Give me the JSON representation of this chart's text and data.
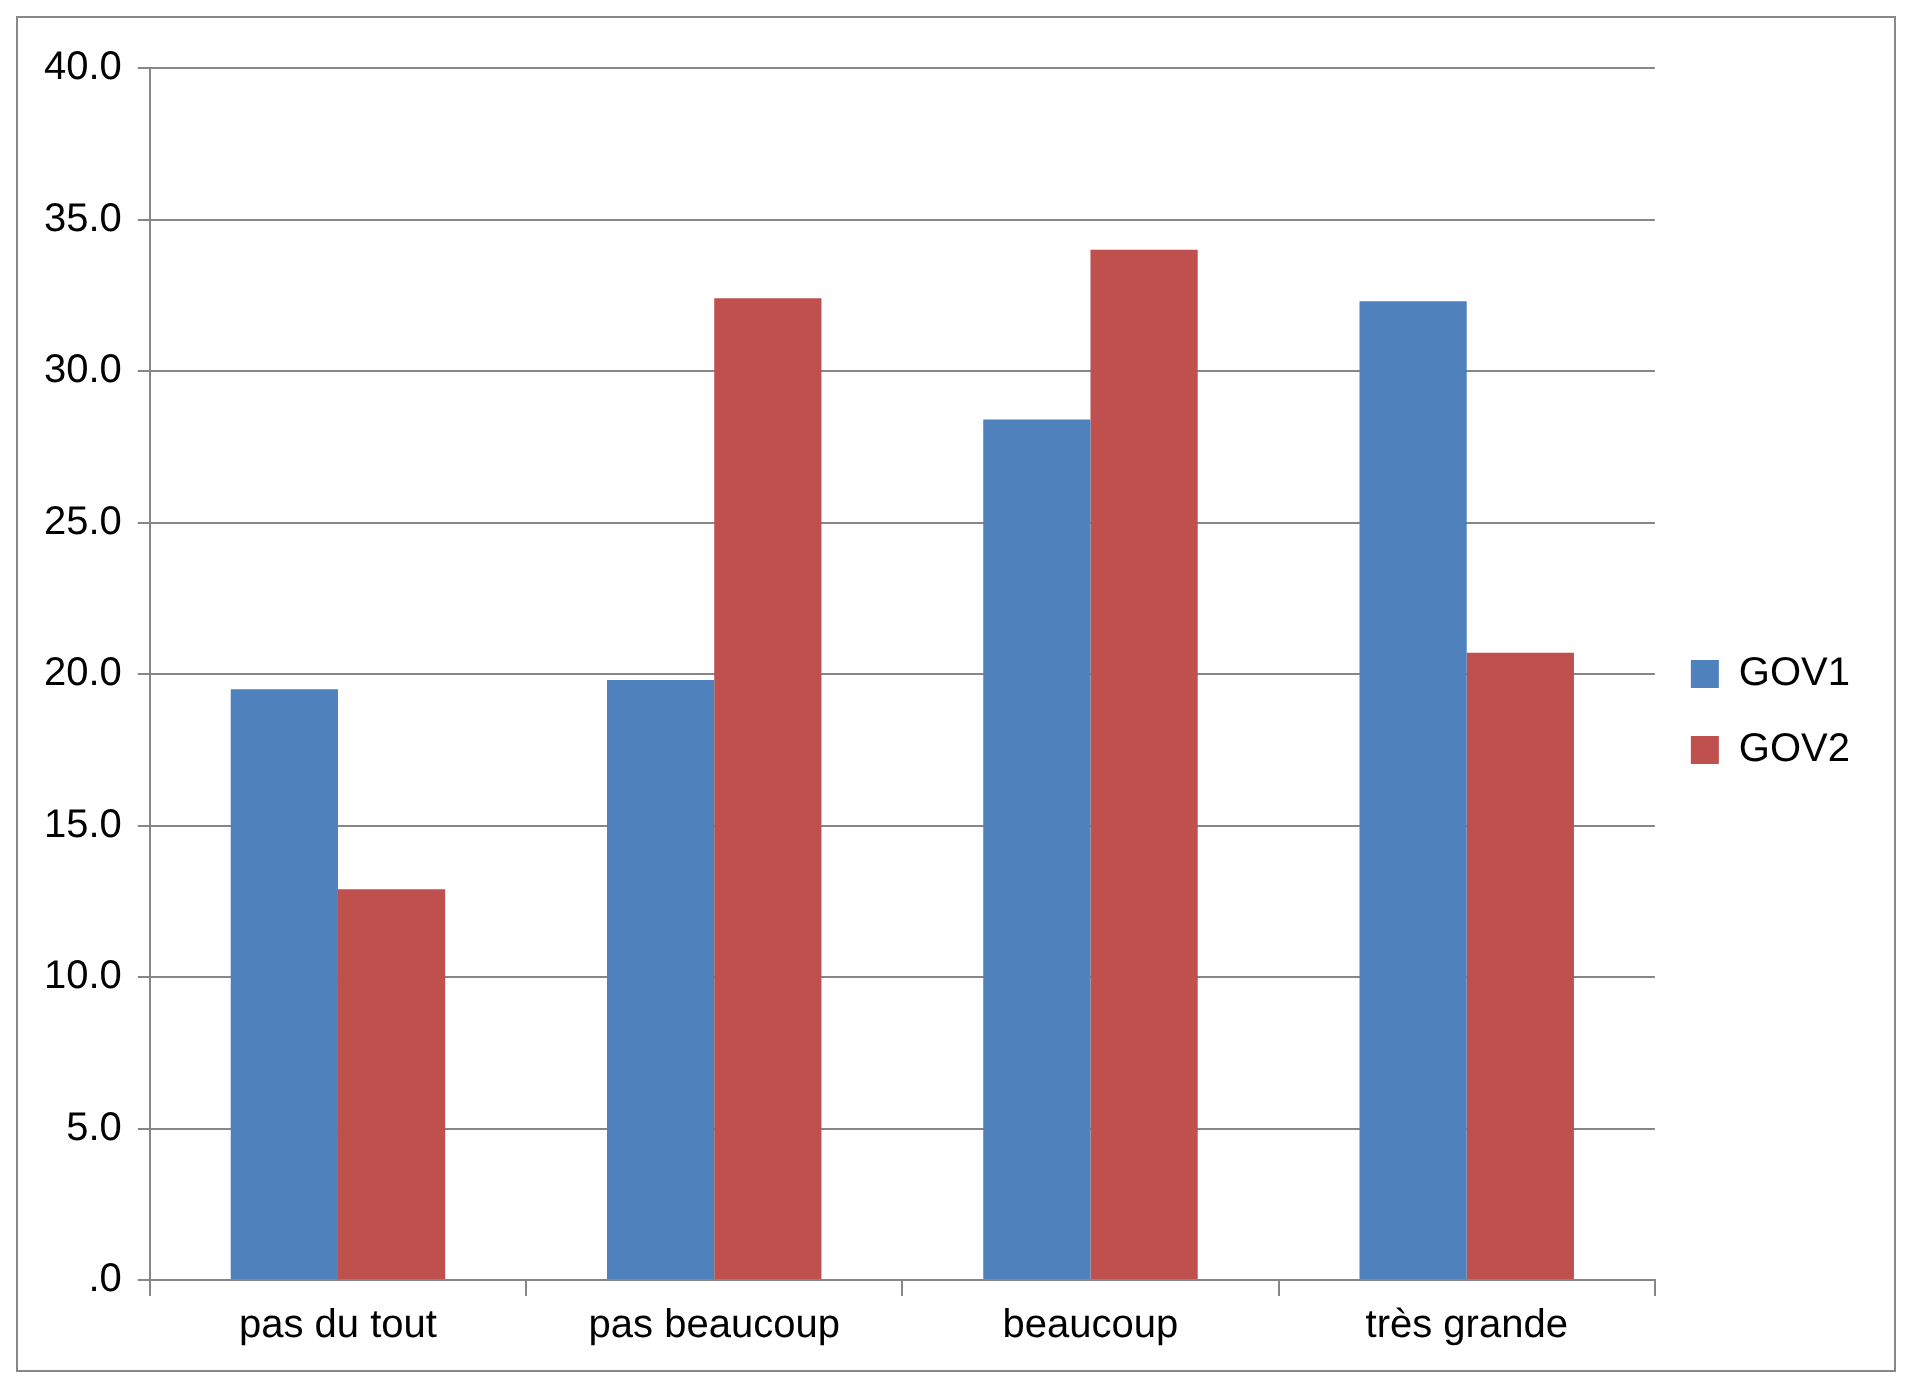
{
  "chart_data": {
    "type": "bar",
    "categories": [
      "pas du tout",
      "pas beaucoup",
      "beaucoup",
      "très grande"
    ],
    "series": [
      {
        "name": "GOV1",
        "color": "#4f81bd",
        "values": [
          19.5,
          19.8,
          28.4,
          32.3
        ]
      },
      {
        "name": "GOV2",
        "color": "#c0504d",
        "values": [
          12.9,
          32.4,
          34.0,
          20.7
        ]
      }
    ],
    "ylim": [
      0,
      40
    ],
    "yticks": [
      {
        "value": 0,
        "label": ".0"
      },
      {
        "value": 5,
        "label": "5.0"
      },
      {
        "value": 10,
        "label": "10.0"
      },
      {
        "value": 15,
        "label": "15.0"
      },
      {
        "value": 20,
        "label": "20.0"
      },
      {
        "value": 25,
        "label": "25.0"
      },
      {
        "value": 30,
        "label": "30.0"
      },
      {
        "value": 35,
        "label": "35.0"
      },
      {
        "value": 40,
        "label": "40.0"
      }
    ],
    "grid": "y",
    "legend": "right"
  }
}
